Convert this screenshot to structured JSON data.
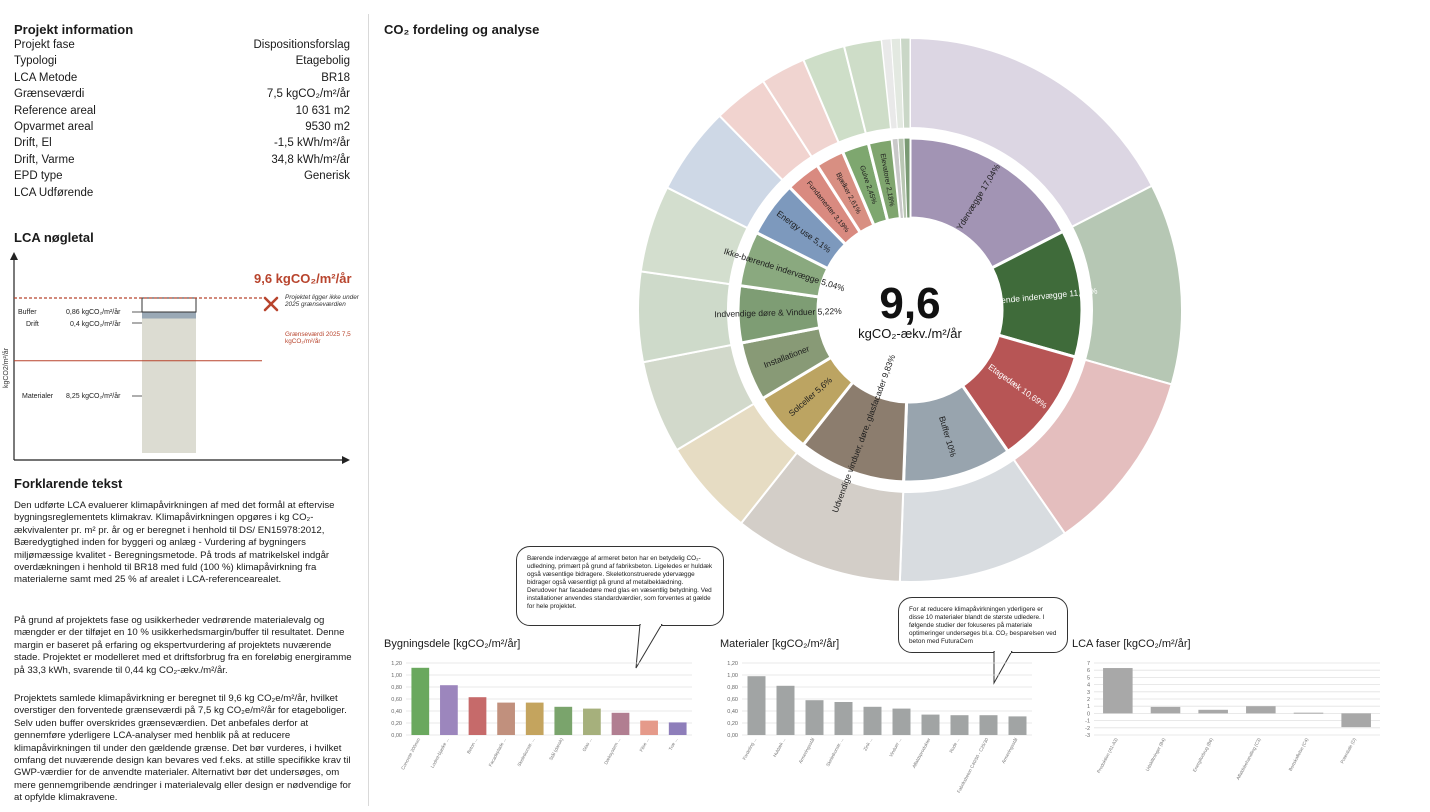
{
  "project_info": {
    "title": "Projekt information",
    "rows": [
      {
        "key": "Projekt fase",
        "value": "Dispositionsforslag"
      },
      {
        "key": "Typologi",
        "value": "Etagebolig"
      },
      {
        "key": "LCA Metode",
        "value": "BR18"
      },
      {
        "key": "Grænseværdi",
        "value": "7,5 kgCO₂/m²/år"
      },
      {
        "key": "Reference areal",
        "value": "10 631 m2"
      },
      {
        "key": "Opvarmet areal",
        "value": "9530 m2"
      },
      {
        "key": "Drift, El",
        "value": "-1,5 kWh/m²/år"
      },
      {
        "key": "Drift, Varme",
        "value": "34,8 kWh/m²/år"
      },
      {
        "key": "EPD type",
        "value": "Generisk"
      },
      {
        "key": "LCA Udførende",
        "value": ""
      }
    ]
  },
  "lca_key": {
    "title": "LCA nøgletal",
    "total_label": "9,6 kgCO₂/m²/år",
    "not_below_note": "Projektet ligger ikke under 2025 grænseværdien",
    "limit_label": "Grænseværdi 2025 7,5 kgCO₂/m²/år",
    "y_axis_label": "kgCO2/m²/år",
    "buffer": {
      "label": "Buffer",
      "value": "0,86 kgCO₂/m²/år"
    },
    "drift": {
      "label": "Drift",
      "value": "0,4 kgCO₂/m²/år"
    },
    "materialer": {
      "label": "Materialer",
      "value": "8,25 kgCO₂/m²/år"
    },
    "stack_values": {
      "materialer": 8.25,
      "drift": 0.4,
      "buffer": 0.86
    },
    "limit_value": 7.5
  },
  "explain": {
    "title": "Forklarende tekst",
    "p1": "Den udførte LCA evaluerer klimapåvirkningen af med det formål at eftervise bygningsreglementets klimakrav. Klimapåvirkningen opgøres i kg CO₂-ækvivalenter pr. m² pr. år og er beregnet i henhold til DS/ EN15978:2012, Bæredygtighed inden for byggeri og anlæg - Vurdering af bygningers miljømæssige kvalitet - Beregningsmetode. På trods af matrikelskel indgår overdækningen i henhold til BR18 med fuld (100 %) klimapåvirkning fra materialerne samt med 25 % af arealet i LCA-referencearealet.",
    "p2": "På grund af projektets fase og usikkerheder vedrørende materialevalg og mængder er der tilføjet en 10 % usikkerhedsmargin/buffer til resultatet. Denne margin er baseret på erfaring og ekspertvurdering af projektets nuværende stade. Projektet er modelleret med et driftsforbrug fra en foreløbig energiramme på 33,3 kWh, svarende til 0,44 kg CO₂-ækv./m²/år.",
    "p3": "Projektets samlede klimapåvirkning er beregnet til 9,6 kg CO₂e/m²/år, hvilket overstiger den forventede grænseværdi på 7,5 kg CO₂e/m²/år for etageboliger. Selv uden buffer overskrides grænseværdien. Det anbefales derfor at gennemføre yderligere LCA-analyser med henblik på at reducere klimapåvirkningen til under den gældende grænse. Det bør vurderes, i hvilket omfang det nuværende design kan bevares ved f.eks. at stille specifikke krav til GWP-værdier for de anvendte materialer. Alternativt bør det undersøges, om mere gennemgribende ændringer i materialevalg eller design er nødvendige for at opfylde klimakravene."
  },
  "donut": {
    "title": "CO₂ fordeling og analyse",
    "center_value": "9,6",
    "center_unit": "kgCO₂-ækv./m²/år"
  },
  "callouts": {
    "bygningsdele": "Bærende indervægge af armeret beton har en betydelig CO₂-udledning, primært på grund af fabriksbeton. Ligeledes er huldæk også væsentlige bidragere. Skeletkonstruerede ydervægge bidrager også væsentligt på grund af metalbeklædning. Derudover har facadedøre med glas en væsentlig betydning. Ved installationer anvendes standardværdier, som forventes at gælde for hele projektet.",
    "materialer": "For at reducere klimapåvirkningen yderligere er disse 10 materialer blandt de største udledere. I følgende studier der fokuseres på materiale optimeringer undersøges bl.a. CO₂ besparelsen ved beton med FuturaCem"
  },
  "chart_data": [
    {
      "type": "pie",
      "title": "CO₂ fordeling og analyse",
      "labels": [
        "Ydervægge 17,04%",
        "Bærende indervægge 11,68%",
        "Etagedæk 10,69%",
        "Buffer 10%",
        "Udvendige vinduer, døre, glasfacader 9,83%",
        "Solceller 5,6%",
        "Installationer",
        "Indvendige døre & Vinduer 5,22%",
        "Ikke-bærende indervægge 5,04%",
        "Energy use 5,1%",
        "Fundamenter 3,19%",
        "Bjælker 2,61%",
        "Gulve 2,45%",
        "Elevatorer 2,18%"
      ],
      "values": [
        17.04,
        11.68,
        10.69,
        10.0,
        9.83,
        5.6,
        5.4,
        5.22,
        5.04,
        5.1,
        3.19,
        2.61,
        2.45,
        2.18
      ],
      "colors": [
        "#a294b4",
        "#3f6b3a",
        "#b75555",
        "#98a4ae",
        "#8c7d6e",
        "#bca462",
        "#889a76",
        "#7e9d74",
        "#8aa97f",
        "#7d99bd",
        "#d98a80",
        "#d88f82",
        "#7ea76f",
        "#7fa56e"
      ]
    },
    {
      "type": "bar",
      "title": "Bygningsdele [kgCO₂/m²/år]",
      "categories": [
        "Concrete 200mm",
        "Lodret-bjælke ...",
        "Beton ...",
        "Facadeplade ...",
        "Skeletkonstr. ...",
        "Stål (dansk)",
        "Glas ...",
        "Dæksystem ...",
        "Flise ...",
        "Træ ..."
      ],
      "values": [
        1.12,
        0.83,
        0.63,
        0.54,
        0.54,
        0.47,
        0.44,
        0.37,
        0.24,
        0.21
      ],
      "colors": [
        "#6aa85e",
        "#9c86bd",
        "#c66a6a",
        "#c1907d",
        "#c4a45e",
        "#7aa46c",
        "#a6b07c",
        "#b17e91",
        "#e59a8a",
        "#8e7eba"
      ],
      "ylim": [
        0,
        1.2
      ]
    },
    {
      "type": "bar",
      "title": "Materialer [kgCO₂/m²/år]",
      "categories": [
        "Fordeling ...",
        "Huldæk ...",
        "Armeringsstål",
        "Skeletkonstr. ...",
        "Zink ...",
        "Vinduer ...",
        "Affaldsprodukter",
        "Rude ...",
        "Fabriksbeton C40/50 - C25/30",
        "Armeringsstål"
      ],
      "values": [
        0.98,
        0.82,
        0.58,
        0.55,
        0.47,
        0.44,
        0.34,
        0.33,
        0.33,
        0.31
      ],
      "colors": [
        "#a1a4a4",
        "#a1a4a4",
        "#a1a4a4",
        "#a1a4a4",
        "#a1a4a4",
        "#a1a4a4",
        "#a1a4a4",
        "#a1a4a4",
        "#a1a4a4",
        "#a1a4a4"
      ],
      "ylim": [
        0,
        1.2
      ]
    },
    {
      "type": "bar",
      "title": "LCA faser [kgCO₂/m²/år]",
      "categories": [
        "Produktion (A1-A3)",
        "Udskiftninger (B4)",
        "Energiforbrug (B6)",
        "Affaldsbehandling (C3)",
        "Bortskaffelse (C4)",
        "Potentiale (D)"
      ],
      "values": [
        6.3,
        0.9,
        0.5,
        1.0,
        0.1,
        -1.9
      ],
      "colors": [
        "#a8a8a8",
        "#a8a8a8",
        "#a8a8a8",
        "#a8a8a8",
        "#a8a8a8",
        "#a8a8a8"
      ],
      "ylim": [
        -3,
        7
      ]
    }
  ]
}
